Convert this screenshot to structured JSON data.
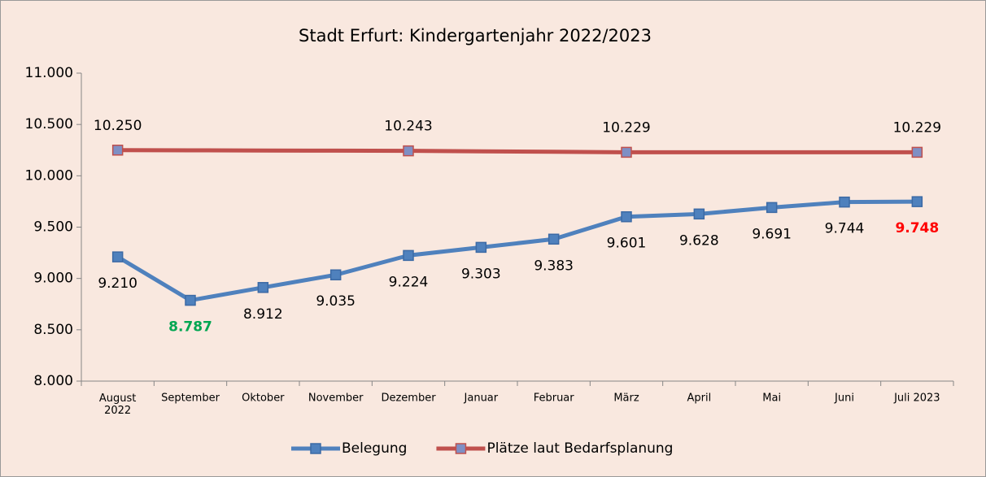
{
  "chart_data": {
    "type": "line",
    "title": "Stadt Erfurt: Kindergartenjahr 2022/2023",
    "categories": [
      "August\n2022",
      "September",
      "Oktober",
      "November",
      "Dezember",
      "Januar",
      "Februar",
      "März",
      "April",
      "Mai",
      "Juni",
      "Juli 2023"
    ],
    "series": [
      {
        "name": "Belegung",
        "color": "#4f81bd",
        "marker_color": "#4f81bd",
        "values": [
          9210,
          8787,
          8912,
          9035,
          9224,
          9303,
          9383,
          9601,
          9628,
          9691,
          9744,
          9748
        ],
        "value_labels": [
          "9.210",
          "8.787",
          "8.912",
          "9.035",
          "9.224",
          "9.303",
          "9.383",
          "9.601",
          "9.628",
          "9.691",
          "9.744",
          "9.748"
        ],
        "label_colors": [
          null,
          "#00a651",
          null,
          null,
          null,
          null,
          null,
          null,
          null,
          null,
          null,
          "#ff0000"
        ]
      },
      {
        "name": "Plätze laut Bedarfsplanung",
        "color": "#c0504d",
        "marker_color": "#7f8fc4",
        "values": [
          10250,
          10248,
          10246,
          10245,
          10243,
          10238,
          10234,
          10229,
          10229,
          10229,
          10229,
          10229
        ],
        "value_labels": [
          "10.250",
          null,
          null,
          null,
          "10.243",
          null,
          null,
          "10.229",
          null,
          null,
          null,
          "10.229"
        ]
      }
    ],
    "ylim": [
      8000,
      11000
    ],
    "yticks": [
      {
        "value": 8000,
        "label": "8.000"
      },
      {
        "value": 8500,
        "label": "8.500"
      },
      {
        "value": 9000,
        "label": "9.000"
      },
      {
        "value": 9500,
        "label": "9.500"
      },
      {
        "value": 10000,
        "label": "10.000"
      },
      {
        "value": 10500,
        "label": "10.500"
      },
      {
        "value": 11000,
        "label": "11.000"
      }
    ],
    "grid": false,
    "legend": "bottom"
  }
}
